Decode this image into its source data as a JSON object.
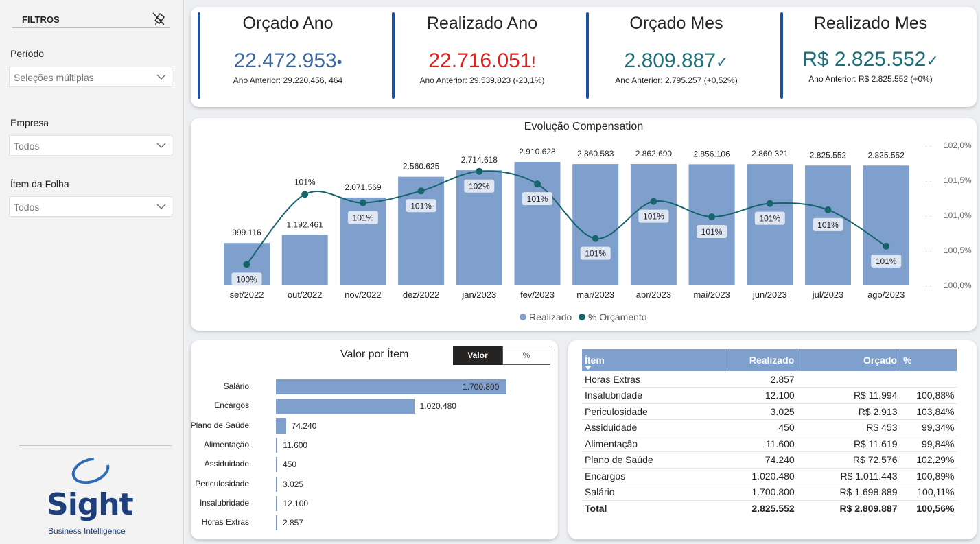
{
  "sidebar": {
    "title": "FILTROS",
    "filters": [
      {
        "label": "Período",
        "value": "Seleções múltiplas"
      },
      {
        "label": "Empresa",
        "value": "Todos"
      },
      {
        "label": "Ítem da Folha",
        "value": "Todos"
      }
    ],
    "logo_text": "Sight",
    "logo_sub": "Business Intelligence"
  },
  "kpis": [
    {
      "title": "Orçado Ano",
      "value": "22.472.953",
      "symbol": "•",
      "color": "#3b68a0",
      "symbol_color": "#3b68a0",
      "prev": "Ano Anterior: 29.220.456, 464"
    },
    {
      "title": "Realizado Ano",
      "value": "22.716.051",
      "symbol": "!",
      "color": "#e0201f",
      "symbol_color": "#e0201f",
      "prev": "Ano Anterior: 29.539.823 (-23,1%)"
    },
    {
      "title": "Orçado Mes",
      "value": "2.809.887",
      "symbol": "✓",
      "color": "#1f6f78",
      "symbol_color": "#1f6f78",
      "prev": "Ano Anterior: 2.795.257 (+0,52%)"
    },
    {
      "title": "Realizado Mes",
      "value": "R$ 2.825.552",
      "symbol": "✓",
      "color": "#1f6f78",
      "symbol_color": "#1f6f78",
      "prev": "Ano Anterior: R$ 2.825.552 (+0%)"
    }
  ],
  "chart_data": {
    "type": "bar",
    "title": "Evolução Compensation",
    "categories": [
      "set/2022",
      "out/2022",
      "nov/2022",
      "dez/2022",
      "jan/2023",
      "fev/2023",
      "mar/2023",
      "abr/2023",
      "mai/2023",
      "jun/2023",
      "jul/2023",
      "ago/2023"
    ],
    "series": [
      {
        "name": "Realizado",
        "type": "bar",
        "axis": "left",
        "color": "#7fa0cd",
        "values": [
          999116,
          1192461,
          2071569,
          2560625,
          2714618,
          2910628,
          2860583,
          2862690,
          2856106,
          2860321,
          2825552,
          2825552
        ],
        "labels": [
          "999.116",
          "1.192.461",
          "2.071.569",
          "2.560.625",
          "2.714.618",
          "2.910.628",
          "2.860.583",
          "2.862.690",
          "2.856.106",
          "2.860.321",
          "2.825.552",
          "2.825.552"
        ]
      },
      {
        "name": "% Orçamento",
        "type": "line",
        "axis": "right",
        "color": "#16646c",
        "values": [
          100.3,
          101.3,
          101.18,
          101.35,
          101.63,
          101.45,
          100.67,
          101.2,
          100.98,
          101.17,
          101.08,
          100.56
        ],
        "labels": [
          "100%",
          "101%",
          "101%",
          "101%",
          "102%",
          "101%",
          "101%",
          "101%",
          "101%",
          "101%",
          "101%",
          "101%"
        ]
      }
    ],
    "ylim": [
      0,
      2910628
    ],
    "y2lim": [
      100.0,
      102.0
    ],
    "y2ticks": [
      "100,0%",
      "100,5%",
      "101,0%",
      "101,5%",
      "102,0%"
    ],
    "legend": "bottom-center"
  },
  "bar_chart": {
    "title": "Valor por Ítem",
    "toggle": {
      "valor": "Valor",
      "pct": "%"
    },
    "max": 1700800,
    "items": [
      {
        "label": "Salário",
        "value": 1700800,
        "display": "1.700.800"
      },
      {
        "label": "Encargos",
        "value": 1020480,
        "display": "1.020.480"
      },
      {
        "label": "Plano de Saúde",
        "value": 74240,
        "display": "74.240"
      },
      {
        "label": "Alimentação",
        "value": 11600,
        "display": "11.600"
      },
      {
        "label": "Assiduidade",
        "value": 450,
        "display": "450"
      },
      {
        "label": "Periculosidade",
        "value": 3025,
        "display": "3.025"
      },
      {
        "label": "Insalubridade",
        "value": 12100,
        "display": "12.100"
      },
      {
        "label": "Horas Extras",
        "value": 2857,
        "display": "2.857"
      }
    ]
  },
  "table": {
    "headers": [
      "Ítem",
      "Realizado",
      "Orçado",
      "%"
    ],
    "rows": [
      [
        "Horas Extras",
        "2.857",
        "",
        ""
      ],
      [
        "Insalubridade",
        "12.100",
        "R$ 11.994",
        "100,88%"
      ],
      [
        "Periculosidade",
        "3.025",
        "R$ 2.913",
        "103,84%"
      ],
      [
        "Assiduidade",
        "450",
        "R$ 453",
        "99,34%"
      ],
      [
        "Alimentação",
        "11.600",
        "R$ 11.619",
        "99,84%"
      ],
      [
        "Plano de Saúde",
        "74.240",
        "R$ 72.576",
        "102,29%"
      ],
      [
        "Encargos",
        "1.020.480",
        "R$ 1.011.443",
        "100,89%"
      ],
      [
        "Salário",
        "1.700.800",
        "R$ 1.698.889",
        "100,11%"
      ]
    ],
    "total": [
      "Total",
      "2.825.552",
      "R$ 2.809.887",
      "100,56%"
    ]
  }
}
